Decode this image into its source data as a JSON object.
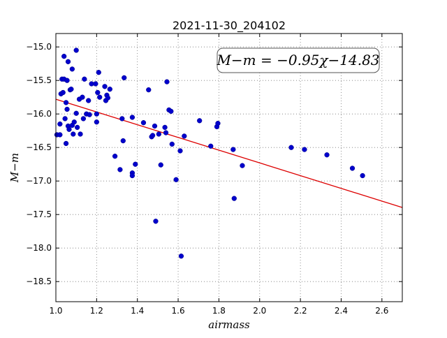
{
  "chart_data": {
    "type": "scatter",
    "title": "2021-11-30_204102",
    "xlabel": "airmass",
    "ylabel": "M−m",
    "xlim": [
      1.0,
      2.7
    ],
    "ylim": [
      -18.8,
      -14.8
    ],
    "y_inverted": true,
    "grid": true,
    "grid_style": "dotted",
    "x_ticks": [
      "1.0",
      "1.2",
      "1.4",
      "1.6",
      "1.8",
      "2.0",
      "2.2",
      "2.4",
      "2.6"
    ],
    "y_ticks": [
      "−15.0",
      "−15.5",
      "−16.0",
      "−16.5",
      "−17.0",
      "−17.5",
      "−18.0",
      "−18.5"
    ],
    "point_color": "#0000cc",
    "fit_color": "#dd0000",
    "fit": {
      "slope": -0.95,
      "intercept": -14.83
    },
    "annotation": "M−m = −0.95χ−14.83",
    "points": [
      [
        1.005,
        -16.31
      ],
      [
        1.02,
        -16.31
      ],
      [
        1.02,
        -16.15
      ],
      [
        1.025,
        -15.7
      ],
      [
        1.03,
        -15.48
      ],
      [
        1.035,
        -15.68
      ],
      [
        1.04,
        -15.14
      ],
      [
        1.04,
        -15.48
      ],
      [
        1.045,
        -16.07
      ],
      [
        1.05,
        -16.44
      ],
      [
        1.05,
        -15.83
      ],
      [
        1.055,
        -15.93
      ],
      [
        1.055,
        -15.5
      ],
      [
        1.06,
        -15.22
      ],
      [
        1.06,
        -16.18
      ],
      [
        1.065,
        -16.23
      ],
      [
        1.07,
        -15.64
      ],
      [
        1.075,
        -15.63
      ],
      [
        1.08,
        -16.17
      ],
      [
        1.08,
        -15.33
      ],
      [
        1.085,
        -16.3
      ],
      [
        1.09,
        -16.12
      ],
      [
        1.1,
        -15.05
      ],
      [
        1.1,
        -15.99
      ],
      [
        1.105,
        -16.2
      ],
      [
        1.115,
        -15.78
      ],
      [
        1.12,
        -16.3
      ],
      [
        1.13,
        -15.75
      ],
      [
        1.135,
        -16.07
      ],
      [
        1.14,
        -15.48
      ],
      [
        1.15,
        -16.0
      ],
      [
        1.16,
        -15.8
      ],
      [
        1.165,
        -16.01
      ],
      [
        1.175,
        -15.55
      ],
      [
        1.195,
        -15.55
      ],
      [
        1.2,
        -16.0
      ],
      [
        1.2,
        -16.12
      ],
      [
        1.21,
        -15.38
      ],
      [
        1.205,
        -15.68
      ],
      [
        1.215,
        -15.75
      ],
      [
        1.24,
        -15.59
      ],
      [
        1.245,
        -15.8
      ],
      [
        1.25,
        -15.72
      ],
      [
        1.255,
        -15.76
      ],
      [
        1.265,
        -15.63
      ],
      [
        1.29,
        -16.63
      ],
      [
        1.315,
        -16.83
      ],
      [
        1.325,
        -16.07
      ],
      [
        1.33,
        -16.4
      ],
      [
        1.335,
        -15.46
      ],
      [
        1.375,
        -16.05
      ],
      [
        1.375,
        -16.88
      ],
      [
        1.375,
        -16.92
      ],
      [
        1.39,
        -16.75
      ],
      [
        1.43,
        -16.13
      ],
      [
        1.455,
        -15.64
      ],
      [
        1.47,
        -16.34
      ],
      [
        1.475,
        -16.32
      ],
      [
        1.485,
        -16.18
      ],
      [
        1.49,
        -17.6
      ],
      [
        1.505,
        -16.3
      ],
      [
        1.515,
        -16.76
      ],
      [
        1.535,
        -16.2
      ],
      [
        1.54,
        -16.28
      ],
      [
        1.545,
        -15.52
      ],
      [
        1.555,
        -15.94
      ],
      [
        1.565,
        -15.96
      ],
      [
        1.57,
        -16.45
      ],
      [
        1.59,
        -16.98
      ],
      [
        1.61,
        -16.55
      ],
      [
        1.615,
        -18.12
      ],
      [
        1.63,
        -16.33
      ],
      [
        1.705,
        -16.1
      ],
      [
        1.76,
        -16.48
      ],
      [
        1.79,
        -16.19
      ],
      [
        1.795,
        -16.14
      ],
      [
        1.87,
        -16.53
      ],
      [
        1.875,
        -17.26
      ],
      [
        1.915,
        -16.77
      ],
      [
        2.155,
        -16.5
      ],
      [
        2.22,
        -16.53
      ],
      [
        2.33,
        -16.61
      ],
      [
        2.455,
        -16.81
      ],
      [
        2.505,
        -16.92
      ]
    ]
  }
}
